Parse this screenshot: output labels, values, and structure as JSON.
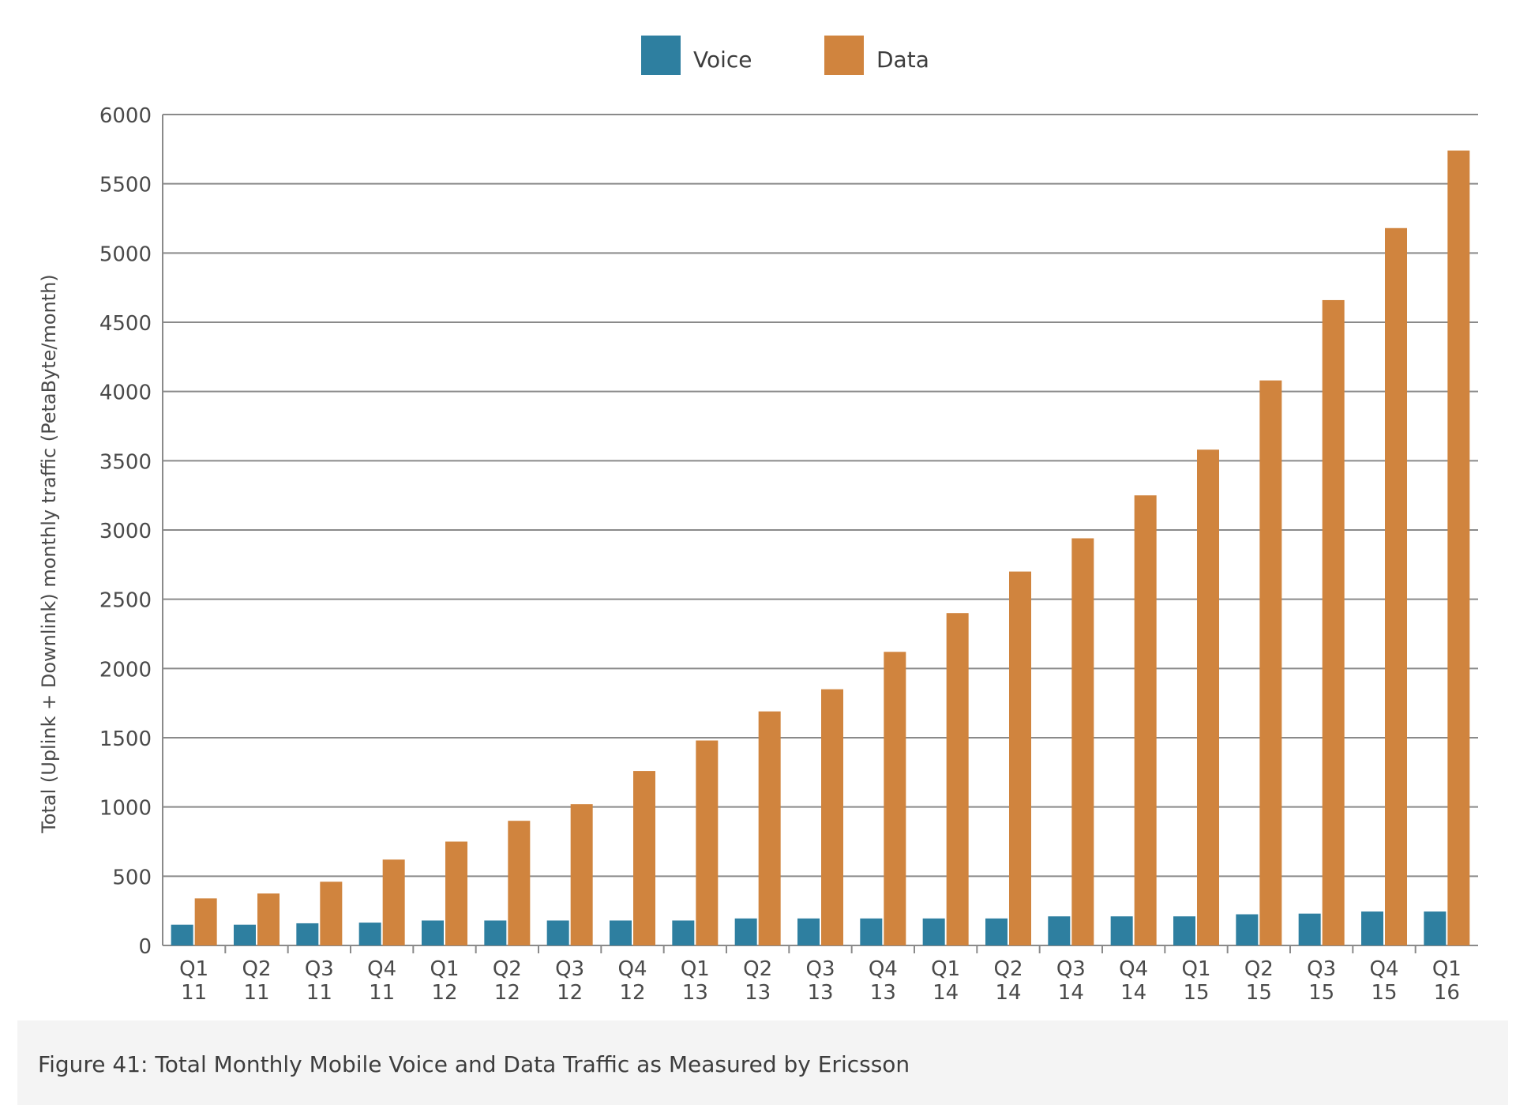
{
  "figure": {
    "caption": "Figure 41: Total Monthly Mobile Voice and Data Traffic as Measured by Ericsson"
  },
  "chart_data": {
    "type": "bar",
    "ylabel": "Total (Uplink + Downlink) monthly traffic (PetaByte/month)",
    "ylim": [
      0,
      6000
    ],
    "yticks": [
      0,
      500,
      1000,
      1500,
      2000,
      2500,
      3000,
      3500,
      4000,
      4500,
      5000,
      5500,
      6000
    ],
    "grid": true,
    "legend_position": "top-center",
    "categories": [
      [
        "Q1",
        "11"
      ],
      [
        "Q2",
        "11"
      ],
      [
        "Q3",
        "11"
      ],
      [
        "Q4",
        "11"
      ],
      [
        "Q1",
        "12"
      ],
      [
        "Q2",
        "12"
      ],
      [
        "Q3",
        "12"
      ],
      [
        "Q4",
        "12"
      ],
      [
        "Q1",
        "13"
      ],
      [
        "Q2",
        "13"
      ],
      [
        "Q3",
        "13"
      ],
      [
        "Q4",
        "13"
      ],
      [
        "Q1",
        "14"
      ],
      [
        "Q2",
        "14"
      ],
      [
        "Q3",
        "14"
      ],
      [
        "Q4",
        "14"
      ],
      [
        "Q1",
        "15"
      ],
      [
        "Q2",
        "15"
      ],
      [
        "Q3",
        "15"
      ],
      [
        "Q4",
        "15"
      ],
      [
        "Q1",
        "16"
      ]
    ],
    "series": [
      {
        "name": "Voice",
        "color": "#2e7fa0",
        "values": [
          150,
          150,
          160,
          165,
          180,
          180,
          180,
          180,
          180,
          195,
          195,
          195,
          195,
          195,
          210,
          210,
          210,
          225,
          230,
          245,
          245
        ]
      },
      {
        "name": "Data",
        "color": "#d0843e",
        "values": [
          340,
          375,
          460,
          620,
          750,
          900,
          1020,
          1260,
          1480,
          1690,
          1850,
          2120,
          2400,
          2700,
          2940,
          3250,
          3580,
          4080,
          4660,
          5180,
          5740
        ]
      }
    ]
  }
}
